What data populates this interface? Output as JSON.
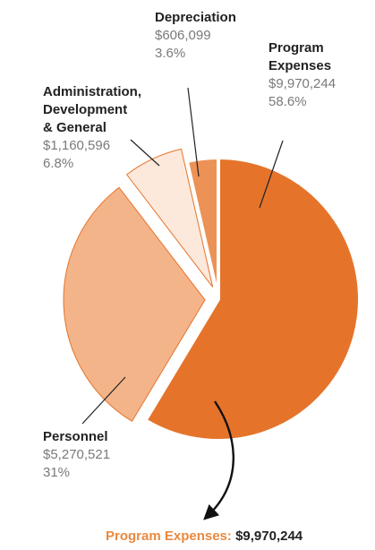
{
  "chart_data": {
    "type": "pie",
    "slices": [
      {
        "name": "Program Expenses",
        "amount": "$9,970,244",
        "value": 9970244,
        "percent": "58.6%",
        "color": "#e5742a",
        "exploded": false
      },
      {
        "name": "Personnel",
        "amount": "$5,270,521",
        "value": 5270521,
        "percent": "31%",
        "color": "#f4b48a",
        "exploded": true
      },
      {
        "name": "Administration, Development & General",
        "amount": "$1,160,596",
        "value": 1160596,
        "percent": "6.8%",
        "color": "#fde8dc",
        "exploded": true
      },
      {
        "name": "Depreciation",
        "amount": "$606,099",
        "value": 606099,
        "percent": "3.6%",
        "color": "#ec9256",
        "exploded": false
      }
    ],
    "labels": {
      "depreciation": {
        "name": [
          "Depreciation"
        ],
        "amount": "$606,099",
        "percent": "3.6%"
      },
      "program": {
        "name": [
          "Program",
          "Expenses"
        ],
        "amount": "$9,970,244",
        "percent": "58.6%"
      },
      "admin": {
        "name": [
          "Administration,",
          "Development",
          "& General"
        ],
        "amount": "$1,160,596",
        "percent": "6.8%"
      },
      "personnel": {
        "name": [
          "Personnel"
        ],
        "amount": "$5,270,521",
        "percent": "31%"
      }
    },
    "footer": {
      "label": "Program Expenses:",
      "value": "$9,970,244"
    }
  }
}
